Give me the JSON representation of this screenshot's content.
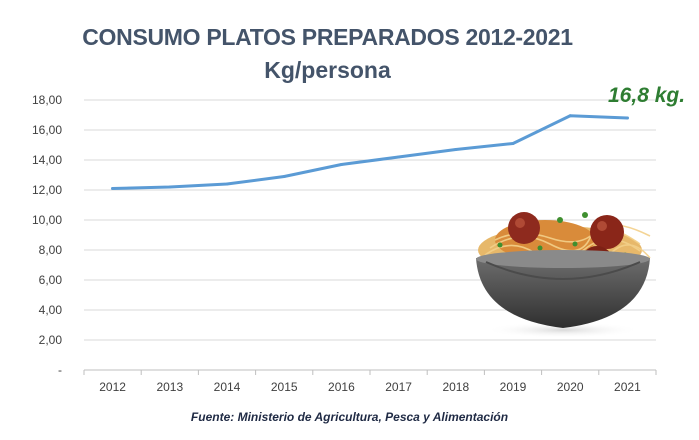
{
  "chart_data": {
    "type": "line",
    "title": "CONSUMO PLATOS PREPARADOS 2012-2021",
    "subtitle": "Kg/persona",
    "categories": [
      "2012",
      "2013",
      "2014",
      "2015",
      "2016",
      "2017",
      "2018",
      "2019",
      "2020",
      "2021"
    ],
    "series": [
      {
        "name": "Consumo platos preparados (Kg/persona)",
        "values": [
          12.1,
          12.2,
          12.4,
          12.9,
          13.7,
          14.2,
          14.7,
          15.1,
          16.95,
          16.8
        ]
      }
    ],
    "ylim": [
      0,
      18
    ],
    "yticks": [
      0,
      2,
      4,
      6,
      8,
      10,
      12,
      14,
      16,
      18
    ],
    "ytick_labels": [
      "-",
      "2,00",
      "4,00",
      "6,00",
      "8,00",
      "10,00",
      "12,00",
      "14,00",
      "16,00",
      "18,00"
    ],
    "grid": true,
    "line_color": "#5b9bd5",
    "annotation": "16,8 kg.",
    "source": "Fuente: Ministerio de Agricultura, Pesca y Alimentación"
  }
}
